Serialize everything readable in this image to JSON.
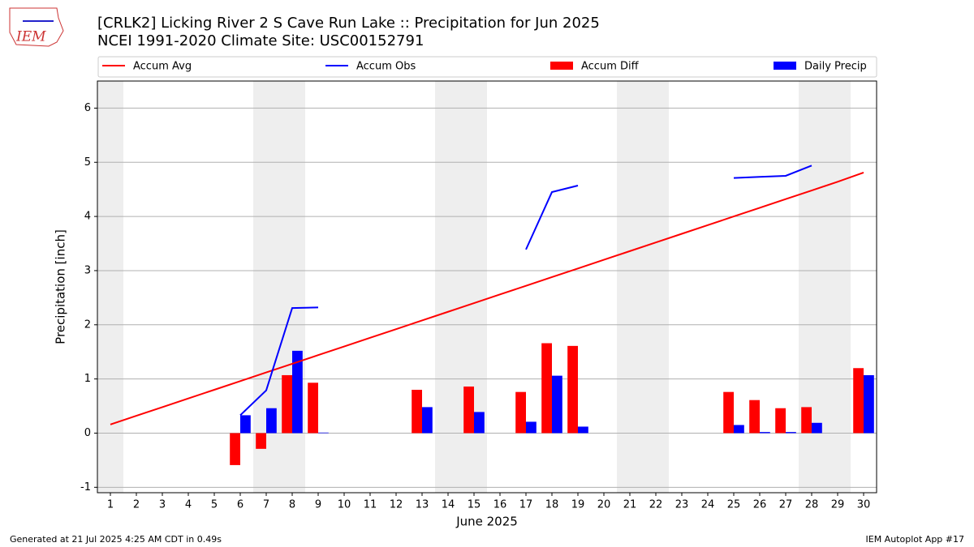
{
  "chart_data": {
    "type": "bar_line",
    "title": "[CRLK2] Licking River 2 S Cave Run Lake :: Precipitation for Jun 2025",
    "subtitle": "NCEI 1991-2020 Climate Site: USC00152791",
    "logo_text": "IEM",
    "x_label": "June 2025",
    "y_label": "Precipitation [inch]",
    "x": [
      1,
      2,
      3,
      4,
      5,
      6,
      7,
      8,
      9,
      10,
      11,
      12,
      13,
      14,
      15,
      16,
      17,
      18,
      19,
      20,
      21,
      22,
      23,
      24,
      25,
      26,
      27,
      28,
      29,
      30
    ],
    "xlim": [
      0.5,
      30.5
    ],
    "xticks": [
      1,
      2,
      3,
      4,
      5,
      6,
      7,
      8,
      9,
      10,
      11,
      12,
      13,
      14,
      15,
      16,
      17,
      18,
      19,
      20,
      21,
      22,
      23,
      24,
      25,
      26,
      27,
      28,
      29,
      30
    ],
    "ylim": [
      -1.1,
      6.5
    ],
    "yticks": [
      -1,
      0,
      1,
      2,
      3,
      4,
      5,
      6
    ],
    "grid": true,
    "shaded_days": [
      1,
      7,
      8,
      14,
      15,
      21,
      22,
      28,
      29
    ],
    "series": [
      {
        "name": "Accum Avg",
        "kind": "line",
        "color": "#ff0000",
        "values": [
          0.16,
          0.32,
          0.48,
          0.64,
          0.8,
          0.96,
          1.12,
          1.28,
          1.44,
          1.6,
          1.76,
          1.92,
          2.08,
          2.24,
          2.4,
          2.56,
          2.72,
          2.88,
          3.04,
          3.2,
          3.36,
          3.52,
          3.68,
          3.84,
          4.0,
          4.16,
          4.32,
          4.48,
          4.64,
          4.81
        ]
      },
      {
        "name": "Accum Obs",
        "kind": "line",
        "color": "#0000ff",
        "values": [
          null,
          null,
          null,
          null,
          null,
          0.33,
          0.79,
          2.31,
          2.32,
          null,
          null,
          null,
          null,
          null,
          null,
          null,
          3.39,
          4.45,
          4.57,
          null,
          null,
          null,
          null,
          null,
          4.71,
          4.73,
          4.75,
          4.94,
          null,
          null
        ]
      },
      {
        "name": "Accum Diff",
        "kind": "bar",
        "color": "#ff0000",
        "offset": -1,
        "values": [
          null,
          null,
          null,
          null,
          null,
          -0.59,
          -0.29,
          1.07,
          0.93,
          null,
          null,
          null,
          0.8,
          null,
          0.86,
          null,
          0.76,
          1.66,
          1.61,
          null,
          null,
          null,
          null,
          null,
          0.76,
          0.61,
          0.46,
          0.48,
          null,
          1.2
        ]
      },
      {
        "name": "Daily Precip",
        "kind": "bar",
        "color": "#0000ff",
        "offset": 0,
        "values": [
          null,
          null,
          null,
          null,
          null,
          0.33,
          0.46,
          1.52,
          0.01,
          null,
          null,
          null,
          0.48,
          null,
          0.39,
          null,
          0.21,
          1.06,
          0.12,
          null,
          null,
          null,
          null,
          null,
          0.15,
          0.02,
          0.02,
          0.19,
          null,
          1.07
        ]
      }
    ],
    "footer_left": "Generated at 21 Jul 2025 4:25 AM CDT in 0.49s",
    "footer_right": "IEM Autoplot App #17"
  }
}
